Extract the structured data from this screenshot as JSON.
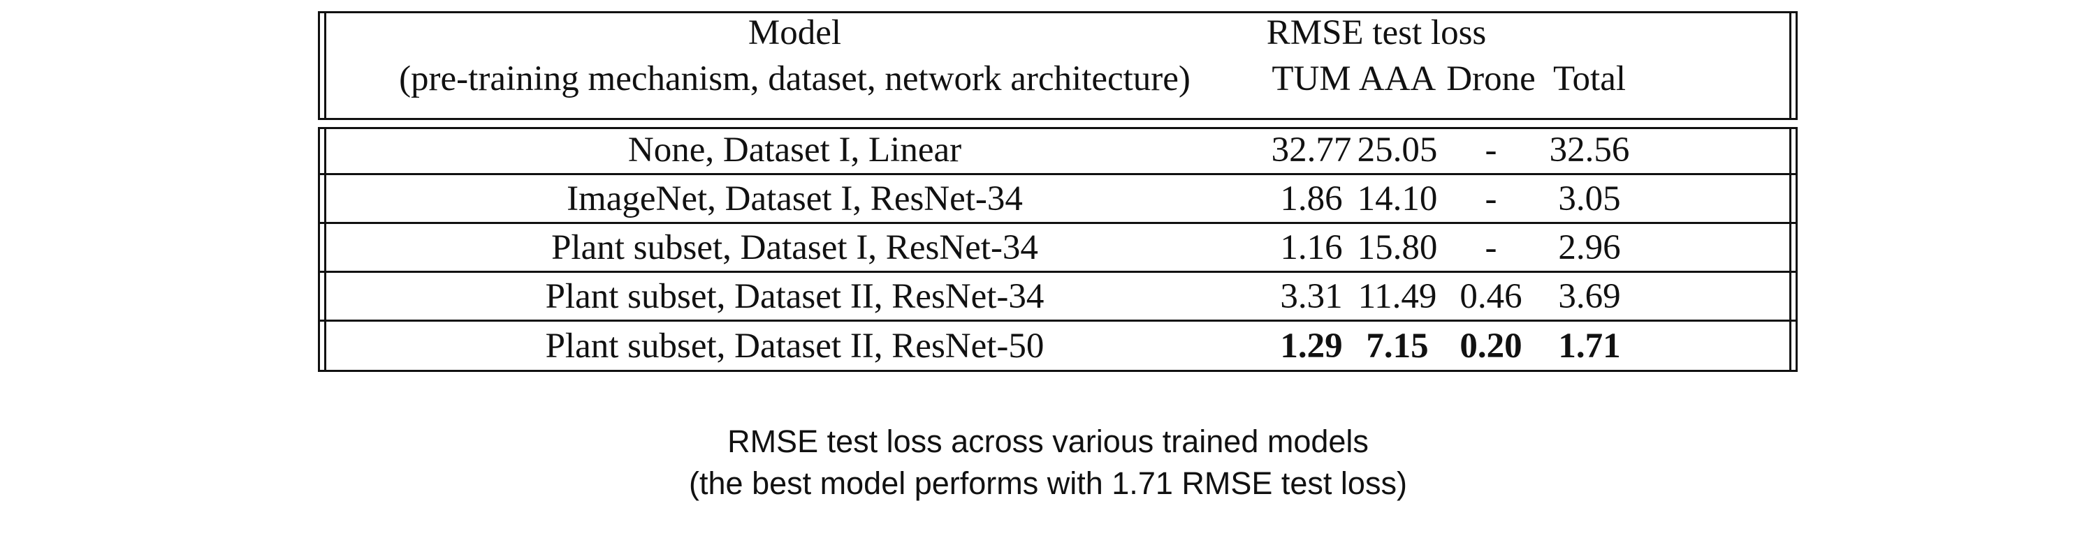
{
  "table": {
    "header": {
      "model_line1": "Model",
      "model_line2": "(pre-training mechanism, dataset, network architecture)",
      "group_label": "RMSE test loss",
      "columns": [
        "TUM",
        "AAA",
        "Drone",
        "Total"
      ]
    },
    "rows": [
      {
        "model": "None, Dataset I, Linear",
        "values": [
          "32.77",
          "25.05",
          "-",
          "32.56"
        ],
        "bold": false
      },
      {
        "model": "ImageNet, Dataset I, ResNet-34",
        "values": [
          "1.86",
          "14.10",
          "-",
          "3.05"
        ],
        "bold": false
      },
      {
        "model": "Plant subset, Dataset I, ResNet-34",
        "values": [
          "1.16",
          "15.80",
          "-",
          "2.96"
        ],
        "bold": false
      },
      {
        "model": "Plant subset, Dataset II, ResNet-34",
        "values": [
          "3.31",
          "11.49",
          "0.46",
          "3.69"
        ],
        "bold": false
      },
      {
        "model": "Plant subset, Dataset II, ResNet-50",
        "values": [
          "1.29",
          "7.15",
          "0.20",
          "1.71"
        ],
        "bold": true
      }
    ]
  },
  "caption": {
    "line1": "RMSE test loss across various trained models",
    "line2": "(the best model performs with 1.71 RMSE test loss)"
  }
}
